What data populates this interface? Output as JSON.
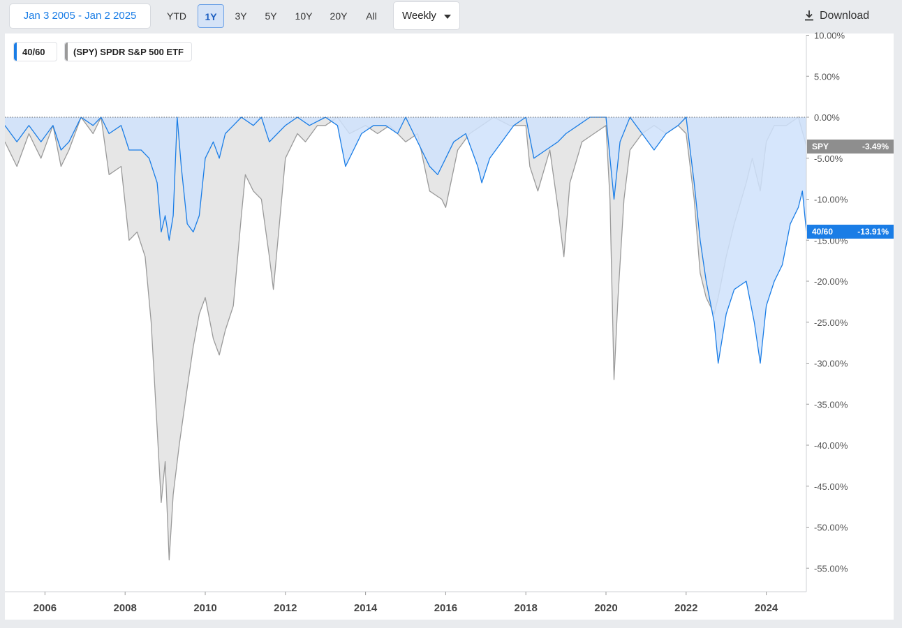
{
  "toolbar": {
    "date_range": "Jan 3 2005 - Jan 2 2025",
    "periods": [
      "YTD",
      "1Y",
      "3Y",
      "5Y",
      "10Y",
      "20Y",
      "All"
    ],
    "active_period": "1Y",
    "frequency": "Weekly",
    "download_label": "Download"
  },
  "colors": {
    "series_4060": "#1a7de6",
    "series_spy": "#9a9a9a",
    "fill_4060": "#cfe2fb",
    "fill_spy": "#e6e6e6"
  },
  "legend": {
    "item1": "40/60",
    "item2": "(SPY) SPDR S&P 500 ETF"
  },
  "tags": {
    "spy_label": "SPY",
    "spy_value": "-3.49%",
    "p4060_label": "40/60",
    "p4060_value": "-13.91%"
  },
  "chart_data": {
    "type": "area",
    "title": "",
    "xlabel": "",
    "ylabel": "",
    "ylim": [
      -58,
      10
    ],
    "xlim": [
      2005.0,
      2025.0
    ],
    "y_ticks": [
      "10.00%",
      "5.00%",
      "0.00%",
      "-5.00%",
      "-10.00%",
      "-15.00%",
      "-20.00%",
      "-25.00%",
      "-30.00%",
      "-35.00%",
      "-40.00%",
      "-45.00%",
      "-50.00%",
      "-55.00%"
    ],
    "x_ticks": [
      "2006",
      "2008",
      "2010",
      "2012",
      "2014",
      "2016",
      "2018",
      "2020",
      "2022",
      "2024"
    ],
    "grid": false,
    "legend_position": "top-left",
    "series": [
      {
        "name": "40/60",
        "points": [
          [
            2005.0,
            -1
          ],
          [
            2005.3,
            -3
          ],
          [
            2005.6,
            -1
          ],
          [
            2005.9,
            -3
          ],
          [
            2006.2,
            -1
          ],
          [
            2006.4,
            -4
          ],
          [
            2006.6,
            -3
          ],
          [
            2006.9,
            0
          ],
          [
            2007.2,
            -1
          ],
          [
            2007.4,
            0
          ],
          [
            2007.6,
            -2
          ],
          [
            2007.9,
            -1
          ],
          [
            2008.1,
            -4
          ],
          [
            2008.4,
            -4
          ],
          [
            2008.6,
            -5
          ],
          [
            2008.8,
            -8
          ],
          [
            2008.9,
            -14
          ],
          [
            2009.0,
            -12
          ],
          [
            2009.1,
            -15
          ],
          [
            2009.2,
            -12
          ],
          [
            2009.3,
            0
          ],
          [
            2009.4,
            -6
          ],
          [
            2009.55,
            -13
          ],
          [
            2009.7,
            -14
          ],
          [
            2009.85,
            -12
          ],
          [
            2010.0,
            -5
          ],
          [
            2010.2,
            -3
          ],
          [
            2010.35,
            -5
          ],
          [
            2010.5,
            -2
          ],
          [
            2010.7,
            -1
          ],
          [
            2010.9,
            0
          ],
          [
            2011.2,
            -1
          ],
          [
            2011.4,
            0
          ],
          [
            2011.6,
            -3
          ],
          [
            2011.8,
            -2
          ],
          [
            2012.0,
            -1
          ],
          [
            2012.3,
            0
          ],
          [
            2012.6,
            -1
          ],
          [
            2013.0,
            0
          ],
          [
            2013.3,
            -1
          ],
          [
            2013.5,
            -6
          ],
          [
            2013.7,
            -4
          ],
          [
            2013.9,
            -2
          ],
          [
            2014.2,
            -1
          ],
          [
            2014.5,
            -1
          ],
          [
            2014.8,
            -2
          ],
          [
            2015.0,
            0
          ],
          [
            2015.3,
            -3
          ],
          [
            2015.6,
            -6
          ],
          [
            2015.8,
            -7
          ],
          [
            2016.0,
            -5
          ],
          [
            2016.2,
            -3
          ],
          [
            2016.5,
            -2
          ],
          [
            2016.8,
            -6
          ],
          [
            2016.9,
            -8
          ],
          [
            2017.1,
            -5
          ],
          [
            2017.4,
            -3
          ],
          [
            2017.7,
            -1
          ],
          [
            2018.0,
            0
          ],
          [
            2018.2,
            -5
          ],
          [
            2018.5,
            -4
          ],
          [
            2018.8,
            -3
          ],
          [
            2019.0,
            -2
          ],
          [
            2019.3,
            -1
          ],
          [
            2019.6,
            0
          ],
          [
            2020.0,
            0
          ],
          [
            2020.2,
            -10
          ],
          [
            2020.35,
            -3
          ],
          [
            2020.6,
            0
          ],
          [
            2020.9,
            -2
          ],
          [
            2021.2,
            -4
          ],
          [
            2021.5,
            -2
          ],
          [
            2021.8,
            -1
          ],
          [
            2022.0,
            0
          ],
          [
            2022.2,
            -8
          ],
          [
            2022.35,
            -15
          ],
          [
            2022.5,
            -20
          ],
          [
            2022.7,
            -25
          ],
          [
            2022.8,
            -30
          ],
          [
            2023.0,
            -24
          ],
          [
            2023.2,
            -21
          ],
          [
            2023.5,
            -20
          ],
          [
            2023.7,
            -25
          ],
          [
            2023.85,
            -30
          ],
          [
            2024.0,
            -23
          ],
          [
            2024.2,
            -20
          ],
          [
            2024.4,
            -18
          ],
          [
            2024.6,
            -13
          ],
          [
            2024.8,
            -11
          ],
          [
            2024.9,
            -9
          ],
          [
            2025.0,
            -13.91
          ]
        ]
      },
      {
        "name": "(SPY) SPDR S&P 500 ETF",
        "points": [
          [
            2005.0,
            -3
          ],
          [
            2005.3,
            -6
          ],
          [
            2005.6,
            -2
          ],
          [
            2005.9,
            -5
          ],
          [
            2006.2,
            -1
          ],
          [
            2006.4,
            -6
          ],
          [
            2006.6,
            -4
          ],
          [
            2006.9,
            0
          ],
          [
            2007.2,
            -2
          ],
          [
            2007.4,
            0
          ],
          [
            2007.6,
            -7
          ],
          [
            2007.9,
            -6
          ],
          [
            2008.1,
            -15
          ],
          [
            2008.3,
            -14
          ],
          [
            2008.5,
            -17
          ],
          [
            2008.65,
            -25
          ],
          [
            2008.8,
            -38
          ],
          [
            2008.9,
            -47
          ],
          [
            2009.0,
            -42
          ],
          [
            2009.1,
            -54
          ],
          [
            2009.2,
            -46
          ],
          [
            2009.35,
            -40
          ],
          [
            2009.55,
            -33
          ],
          [
            2009.7,
            -28
          ],
          [
            2009.85,
            -24
          ],
          [
            2010.0,
            -22
          ],
          [
            2010.2,
            -27
          ],
          [
            2010.35,
            -29
          ],
          [
            2010.5,
            -26
          ],
          [
            2010.7,
            -23
          ],
          [
            2010.9,
            -12
          ],
          [
            2011.0,
            -7
          ],
          [
            2011.2,
            -9
          ],
          [
            2011.4,
            -10
          ],
          [
            2011.6,
            -17
          ],
          [
            2011.7,
            -21
          ],
          [
            2011.85,
            -13
          ],
          [
            2012.0,
            -5
          ],
          [
            2012.3,
            -2
          ],
          [
            2012.5,
            -3
          ],
          [
            2012.8,
            -1
          ],
          [
            2013.0,
            -1
          ],
          [
            2013.3,
            0
          ],
          [
            2013.6,
            -2
          ],
          [
            2014.0,
            -1
          ],
          [
            2014.3,
            -2
          ],
          [
            2014.6,
            -1
          ],
          [
            2015.0,
            -3
          ],
          [
            2015.3,
            -2
          ],
          [
            2015.6,
            -9
          ],
          [
            2015.9,
            -10
          ],
          [
            2016.0,
            -11
          ],
          [
            2016.3,
            -4
          ],
          [
            2016.6,
            -2
          ],
          [
            2016.9,
            -1
          ],
          [
            2017.2,
            0
          ],
          [
            2017.6,
            -1
          ],
          [
            2018.0,
            -1
          ],
          [
            2018.1,
            -6
          ],
          [
            2018.3,
            -9
          ],
          [
            2018.6,
            -4
          ],
          [
            2018.8,
            -11
          ],
          [
            2018.95,
            -17
          ],
          [
            2019.1,
            -8
          ],
          [
            2019.4,
            -3
          ],
          [
            2019.7,
            -2
          ],
          [
            2020.0,
            -1
          ],
          [
            2020.1,
            -10
          ],
          [
            2020.2,
            -32
          ],
          [
            2020.3,
            -22
          ],
          [
            2020.45,
            -10
          ],
          [
            2020.6,
            -4
          ],
          [
            2020.9,
            -2
          ],
          [
            2021.2,
            -1
          ],
          [
            2021.5,
            -2
          ],
          [
            2021.8,
            -1
          ],
          [
            2022.0,
            -2
          ],
          [
            2022.2,
            -10
          ],
          [
            2022.35,
            -19
          ],
          [
            2022.5,
            -22
          ],
          [
            2022.7,
            -24
          ],
          [
            2022.8,
            -22
          ],
          [
            2023.0,
            -17
          ],
          [
            2023.2,
            -13
          ],
          [
            2023.5,
            -8
          ],
          [
            2023.65,
            -5
          ],
          [
            2023.85,
            -9
          ],
          [
            2024.0,
            -3
          ],
          [
            2024.2,
            -1
          ],
          [
            2024.5,
            -1
          ],
          [
            2024.8,
            0
          ],
          [
            2025.0,
            -3.49
          ]
        ]
      }
    ]
  }
}
